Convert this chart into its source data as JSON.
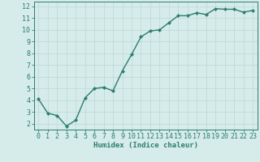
{
  "xlabel": "Humidex (Indice chaleur)",
  "x": [
    0,
    1,
    2,
    3,
    4,
    5,
    6,
    7,
    8,
    9,
    10,
    11,
    12,
    13,
    14,
    15,
    16,
    17,
    18,
    19,
    20,
    21,
    22,
    23
  ],
  "y": [
    4.1,
    2.9,
    2.7,
    1.8,
    2.3,
    4.2,
    5.0,
    5.1,
    4.8,
    6.5,
    7.9,
    9.4,
    9.9,
    10.0,
    10.6,
    11.2,
    11.2,
    11.45,
    11.3,
    11.8,
    11.75,
    11.75,
    11.5,
    11.65
  ],
  "line_color": "#2d7d6e",
  "marker": "D",
  "marker_size": 2.2,
  "bg_color": "#d5ecea",
  "grid_color": "#c0dbd8",
  "axis_color": "#2d7d6e",
  "tick_color": "#2d7d6e",
  "label_color": "#2d7d6e",
  "ylim": [
    1.5,
    12.4
  ],
  "xlim": [
    -0.5,
    23.5
  ],
  "yticks": [
    2,
    3,
    4,
    5,
    6,
    7,
    8,
    9,
    10,
    11,
    12
  ],
  "xticks": [
    0,
    1,
    2,
    3,
    4,
    5,
    6,
    7,
    8,
    9,
    10,
    11,
    12,
    13,
    14,
    15,
    16,
    17,
    18,
    19,
    20,
    21,
    22,
    23
  ],
  "xlabel_fontsize": 6.5,
  "tick_fontsize": 6.0,
  "line_width": 1.0
}
